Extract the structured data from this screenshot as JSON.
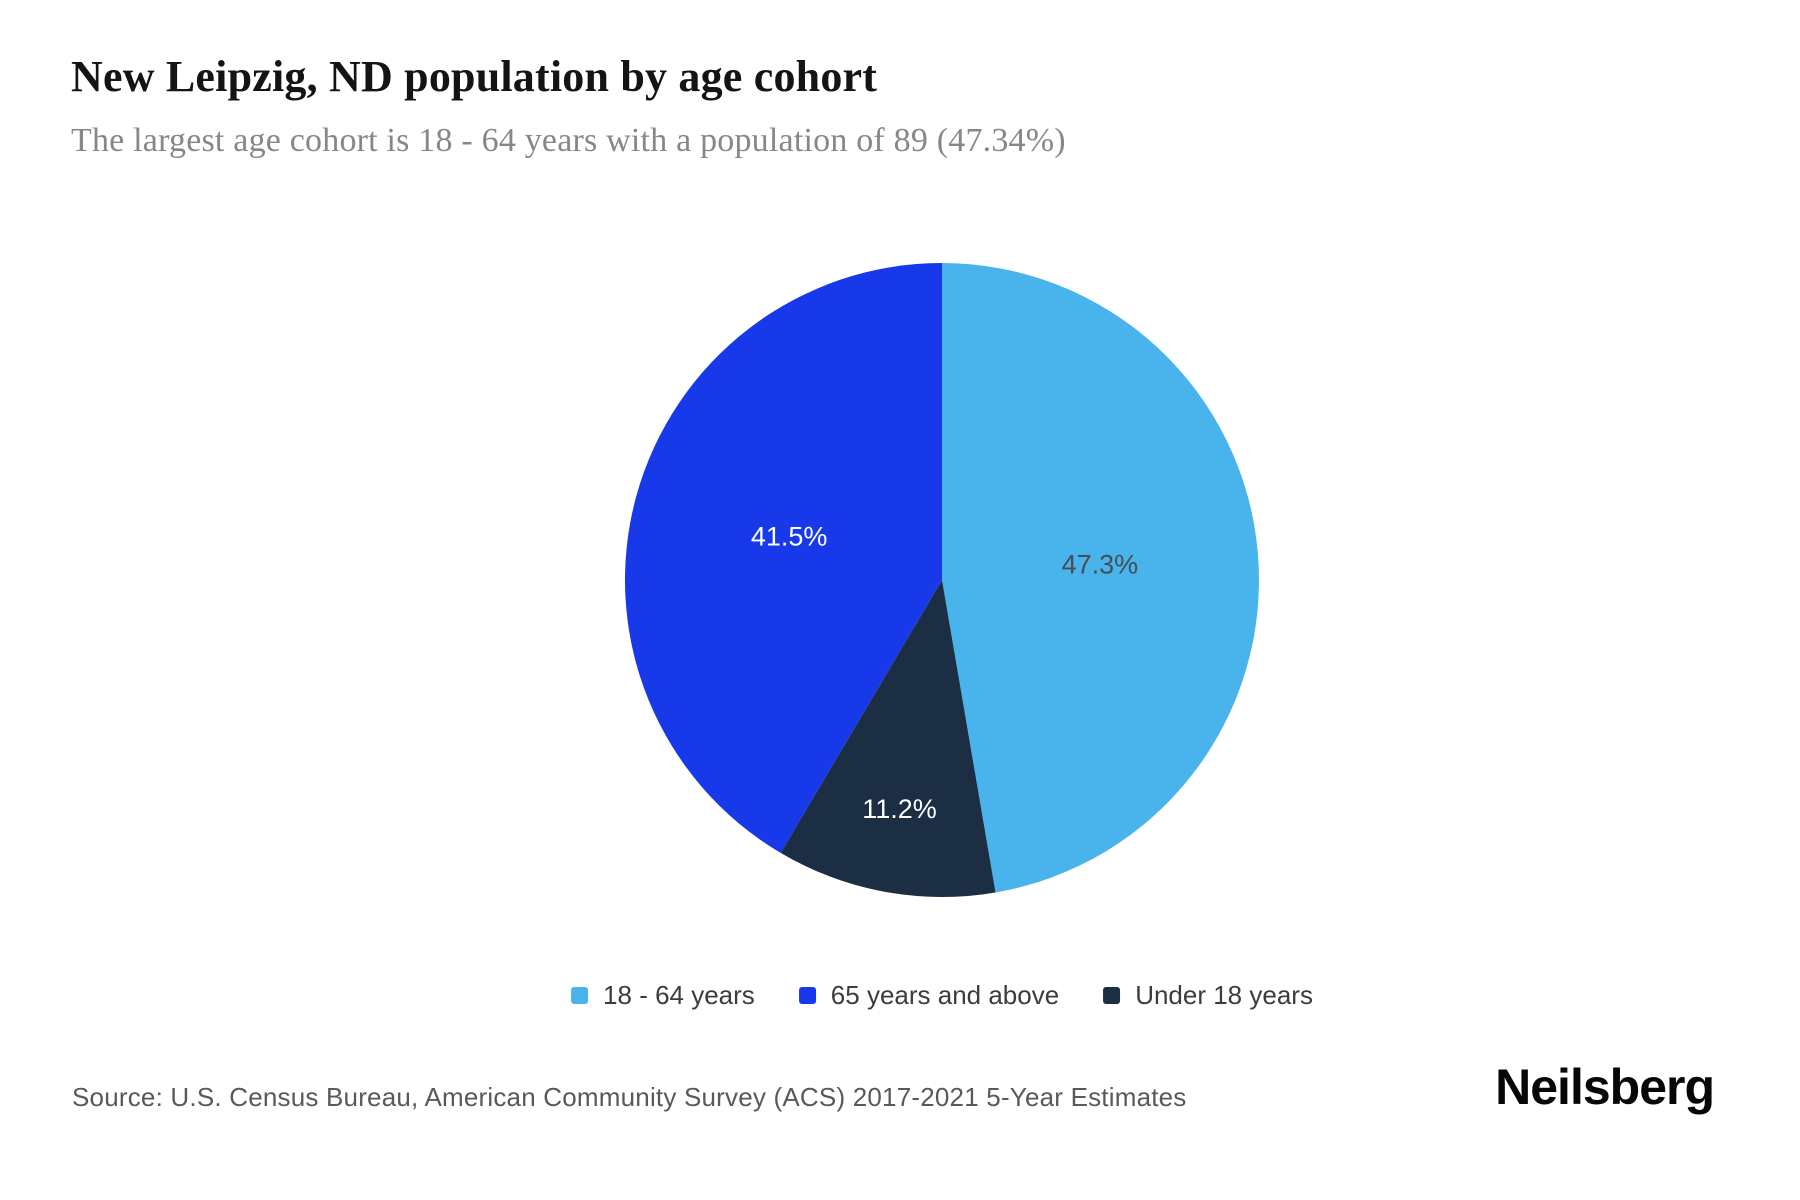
{
  "chart_data": {
    "type": "pie",
    "title": "New Leipzig, ND population by age cohort",
    "subtitle": "The largest age cohort is 18 - 64 years with a population of 89 (47.34%)",
    "direction": "clockwise",
    "start_angle_deg": 0,
    "slices": [
      {
        "label": "18 - 64 years",
        "value": 47.3,
        "display": "47.3%",
        "color": "#49b4ec",
        "label_color": "#454e54"
      },
      {
        "label": "Under 18 years",
        "value": 11.2,
        "display": "11.2%",
        "color": "#1c2e44",
        "label_color": "#ffffff"
      },
      {
        "label": "65 years and above",
        "value": 41.5,
        "display": "41.5%",
        "color": "#1839ea",
        "label_color": "#ffffff"
      }
    ],
    "legend": [
      {
        "label": "18 - 64 years",
        "color": "#49b4ec"
      },
      {
        "label": "65 years and above",
        "color": "#1839ea"
      },
      {
        "label": "Under 18 years",
        "color": "#1c2e44"
      }
    ],
    "legend_position": "bottom"
  },
  "footer": {
    "source": "Source: U.S. Census Bureau, American Community Survey (ACS) 2017-2021 5-Year Estimates",
    "brand": "Neilsberg"
  }
}
